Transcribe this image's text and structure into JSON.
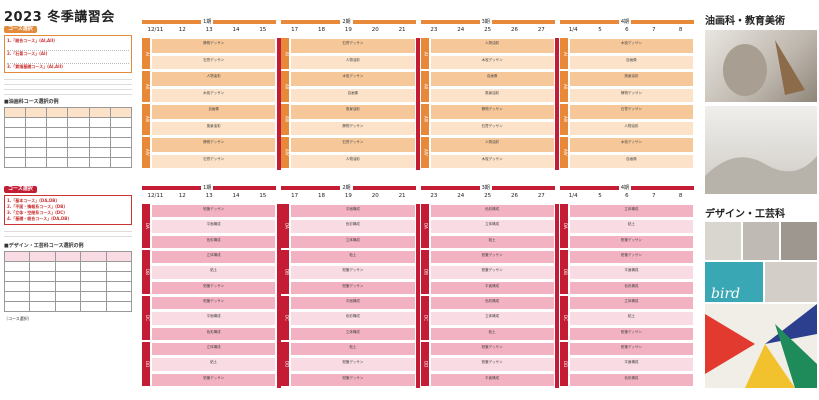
{
  "header": {
    "title": "2023 冬季講習会"
  },
  "left": {
    "course_select_1": "コース選択",
    "courses_1": [
      "1.「総合コース」(AI,AII)",
      "2.「石膏コース」(AI)",
      "3.「素描基礎コース」(AI,AII)"
    ],
    "table_1_title": "■油画科コース選択の例",
    "course_select_2": "コース選択",
    "courses_2": [
      "1.「基本コース」(DA,DB)",
      "2.「平面・情報系コース」(DB)",
      "3.「立体・空間系コース」(DC)",
      "4.「基礎・総合コース」(DA,DB)"
    ],
    "table_2_title": "■デザイン・工芸科コース選択の例",
    "footer_note": "（コース選択）"
  },
  "schedule_top": {
    "periods": [
      "1期",
      "2期",
      "3期",
      "4期"
    ],
    "dates": [
      "12/11",
      "12",
      "13",
      "14",
      "15",
      "17",
      "18",
      "19",
      "20",
      "21",
      "23",
      "24",
      "25",
      "26",
      "27",
      "1/4",
      "5",
      "6",
      "7",
      "8"
    ],
    "row_labels": [
      "AI",
      "AII",
      "AIII",
      "AIV"
    ],
    "cell_texts": [
      "静物デッサン",
      "石膏デッサン",
      "人物油彩",
      "木炭デッサン",
      "自画像",
      "風景油彩"
    ]
  },
  "schedule_bottom": {
    "periods": [
      "1期",
      "2期",
      "3期",
      "4期"
    ],
    "dates": [
      "12/11",
      "12",
      "13",
      "14",
      "15",
      "17",
      "18",
      "19",
      "20",
      "21",
      "23",
      "24",
      "25",
      "26",
      "27",
      "1/4",
      "5",
      "6",
      "7",
      "8"
    ],
    "row_labels": [
      "DA",
      "DB",
      "DC",
      "DD"
    ],
    "cell_texts": [
      "鉛筆デッサン",
      "平面構成",
      "色彩構成",
      "立体構成",
      "粘土",
      "鉛筆デッサン"
    ]
  },
  "right": {
    "oil_title": "油画科・教育美術",
    "design_title": "デザイン・工芸科",
    "bird_word": "bird"
  },
  "colors": {
    "orange_head": "#e8893a",
    "orange_cell": "#f6c799",
    "orange_light": "#fbe2c8",
    "pink_head": "#c41c35",
    "pink_cell": "#f3b2c2",
    "pink_light": "#f9dbe3",
    "red_sep": "#c41c35"
  }
}
